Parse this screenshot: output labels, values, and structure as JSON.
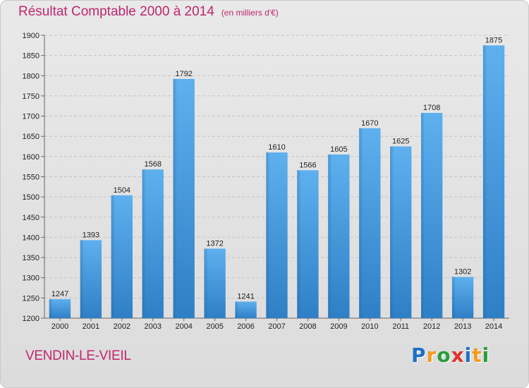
{
  "chart_data": {
    "type": "bar",
    "title": "Résultat Comptable 2000 à 2014",
    "subtitle": "(en milliers d'€)",
    "categories": [
      "2000",
      "2001",
      "2002",
      "2003",
      "2004",
      "2005",
      "2006",
      "2007",
      "2008",
      "2009",
      "2010",
      "2011",
      "2012",
      "2013",
      "2014"
    ],
    "values": [
      1247,
      1393,
      1504,
      1568,
      1792,
      1372,
      1241,
      1610,
      1566,
      1605,
      1670,
      1625,
      1708,
      1302,
      1875
    ],
    "ylim": [
      1200,
      1900
    ],
    "yticks": [
      1200,
      1250,
      1300,
      1350,
      1400,
      1450,
      1500,
      1550,
      1600,
      1650,
      1700,
      1750,
      1800,
      1850,
      1900
    ],
    "grid": true,
    "bar_color": "#4a9ede"
  },
  "footer": {
    "commune": "VENDIN-LE-VIEIL",
    "logo_letters": [
      {
        "char": "P",
        "color": "#1e6fc4"
      },
      {
        "char": "r",
        "color": "#f39a1e"
      },
      {
        "char": "o",
        "color": "#2a9d3a"
      },
      {
        "char": "x",
        "color": "#e0332a"
      },
      {
        "char": "i",
        "color": "#1e6fc4"
      },
      {
        "char": "t",
        "color": "#f39a1e"
      },
      {
        "char": "i",
        "color": "#2a9d3a"
      }
    ]
  }
}
